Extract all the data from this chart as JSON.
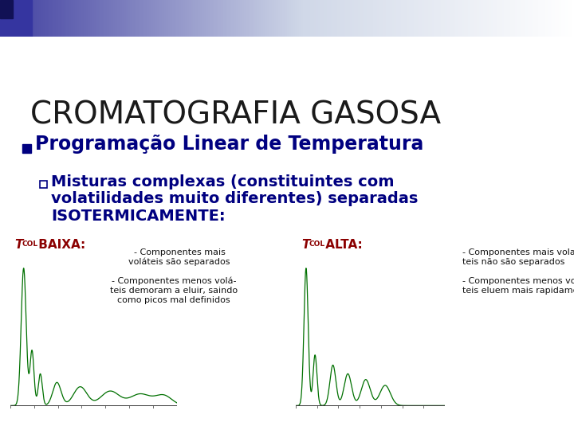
{
  "title": "CROMATOGRAFIA GASOSA",
  "title_fontsize": 28,
  "title_color": "#1a1a1a",
  "bullet1": "Programação Linear de Temperatura",
  "bullet1_color": "#000080",
  "bullet1_fontsize": 17,
  "bullet_marker_color": "#000080",
  "subbullet_line1": "Misturas complexas (constituintes com",
  "subbullet_line2": "volatilidades muito diferentes) separadas",
  "subbullet_line3": "ISOTERMICAMENTE:",
  "subbullet1_color": "#000080",
  "subbullet1_fontsize": 14,
  "label_color": "#8B0000",
  "label_fontsize": 11,
  "note_baixa_1": "- Componentes mais\nvoláteis são separados",
  "note_baixa_2": "- Componentes menos volá-\nteis demoram a eluir, saindo\ncomo picos mal definidos",
  "note_alta_1": "- Componentes mais vola-\nteis não são separados",
  "note_alta_2": "- Componentes menos volá-\nteis eluem mais rapidamente",
  "note_fontsize": 8,
  "note_color": "#111111",
  "background_color": "#ffffff",
  "green_line": "#007000",
  "header_left_dark": "#222266",
  "header_mid": "#5050a8",
  "header_light": "#d0d8e8"
}
